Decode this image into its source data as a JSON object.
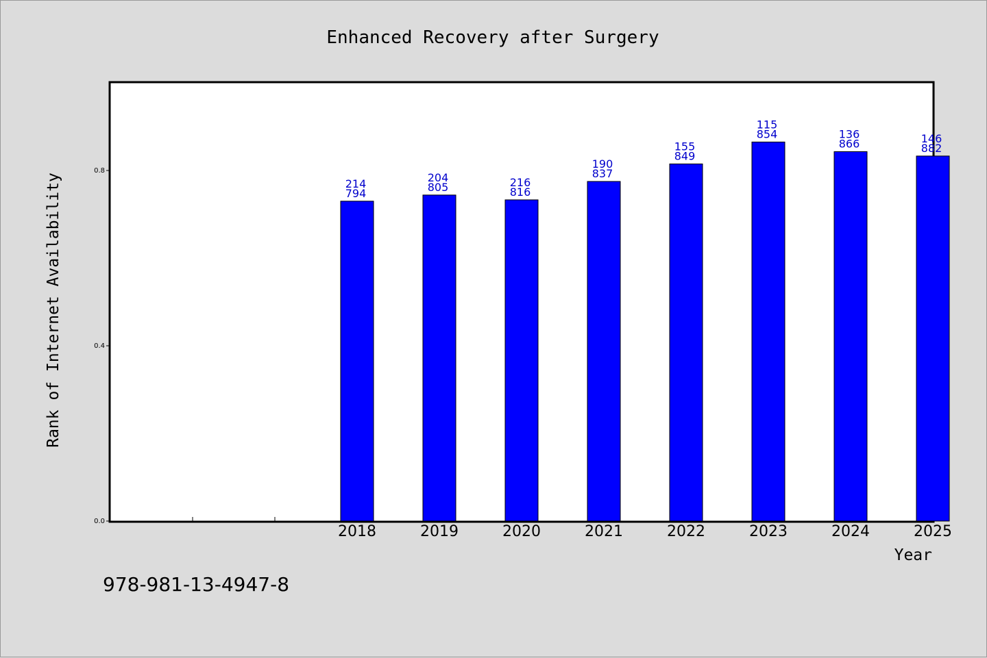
{
  "chart_data": {
    "type": "bar",
    "title": "Enhanced Recovery after Surgery",
    "xlabel": "Year",
    "ylabel": "Rank of Internet Availability",
    "categories": [
      "",
      "",
      "2018",
      "2019",
      "2020",
      "2021",
      "2022",
      "2023",
      "2024",
      "2025"
    ],
    "values": [
      null,
      null,
      0.73,
      0.744,
      0.733,
      0.775,
      0.815,
      0.865,
      0.843,
      0.833
    ],
    "data_labels": [
      [
        "",
        ""
      ],
      [
        "",
        ""
      ],
      [
        "214",
        "794"
      ],
      [
        "204",
        "805"
      ],
      [
        "216",
        "816"
      ],
      [
        "190",
        "837"
      ],
      [
        "155",
        "849"
      ],
      [
        "115",
        "854"
      ],
      [
        "136",
        "866"
      ],
      [
        "146",
        "882"
      ]
    ],
    "ylim": [
      0,
      1.0
    ],
    "yticks": [
      0.0,
      0.4,
      0.8
    ],
    "ytick_labels": [
      "0.0",
      "0.4",
      "0.8"
    ],
    "grid": false,
    "bar_color": "#0000ff",
    "label_color": "#0000cc"
  },
  "footer": {
    "isbn": "978-981-13-4947-8"
  }
}
